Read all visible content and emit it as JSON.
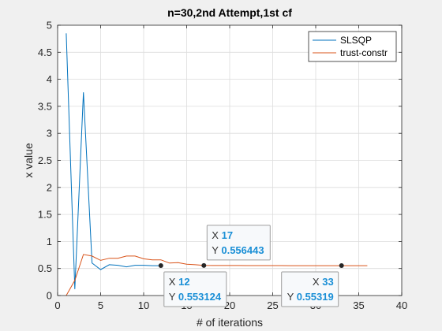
{
  "chart_data": {
    "type": "line",
    "title": "n=30,2nd Attempt,1st cf",
    "xlabel": "# of iterations",
    "ylabel": "x value",
    "xlim": [
      0,
      40
    ],
    "ylim": [
      0,
      5
    ],
    "xticks": [
      "0",
      "5",
      "10",
      "15",
      "20",
      "25",
      "30",
      "35",
      "40"
    ],
    "yticks": [
      "0",
      "0.5",
      "1",
      "1.5",
      "2",
      "2.5",
      "3",
      "3.5",
      "4",
      "4.5",
      "5"
    ],
    "grid": true,
    "legend": "top-right",
    "series": [
      {
        "name": "SLSQP",
        "color": "#0072bd",
        "x": [
          1,
          2,
          3,
          4,
          5,
          6,
          7,
          8,
          9,
          10,
          11,
          12
        ],
        "y": [
          4.85,
          0.12,
          3.76,
          0.6,
          0.48,
          0.57,
          0.56,
          0.53,
          0.56,
          0.56,
          0.553,
          0.553124
        ]
      },
      {
        "name": "trust-constr",
        "color": "#d95319",
        "x": [
          1,
          2,
          3,
          4,
          5,
          6,
          7,
          8,
          9,
          10,
          11,
          12,
          13,
          14,
          15,
          16,
          17,
          18,
          19,
          20,
          21,
          22,
          23,
          24,
          25,
          26,
          27,
          28,
          29,
          30,
          31,
          32,
          33,
          34,
          35,
          36
        ],
        "y": [
          0.0,
          0.28,
          0.76,
          0.73,
          0.65,
          0.69,
          0.69,
          0.73,
          0.73,
          0.68,
          0.66,
          0.66,
          0.6,
          0.61,
          0.58,
          0.57,
          0.556443,
          0.556,
          0.556,
          0.555,
          0.555,
          0.554,
          0.554,
          0.554,
          0.554,
          0.554,
          0.553,
          0.553,
          0.553,
          0.553,
          0.553,
          0.553,
          0.55319,
          0.553,
          0.553,
          0.553
        ]
      }
    ],
    "datatips": [
      {
        "x_label": "X",
        "x_value": "12",
        "y_label": "Y",
        "y_value": "0.553124",
        "x": 12,
        "y": 0.553124
      },
      {
        "x_label": "X",
        "x_value": "17",
        "y_label": "Y",
        "y_value": "0.556443",
        "x": 17,
        "y": 0.556443
      },
      {
        "x_label": "X",
        "x_value": "33",
        "y_label": "Y",
        "y_value": "0.55319",
        "x": 33,
        "y": 0.55319
      }
    ]
  }
}
